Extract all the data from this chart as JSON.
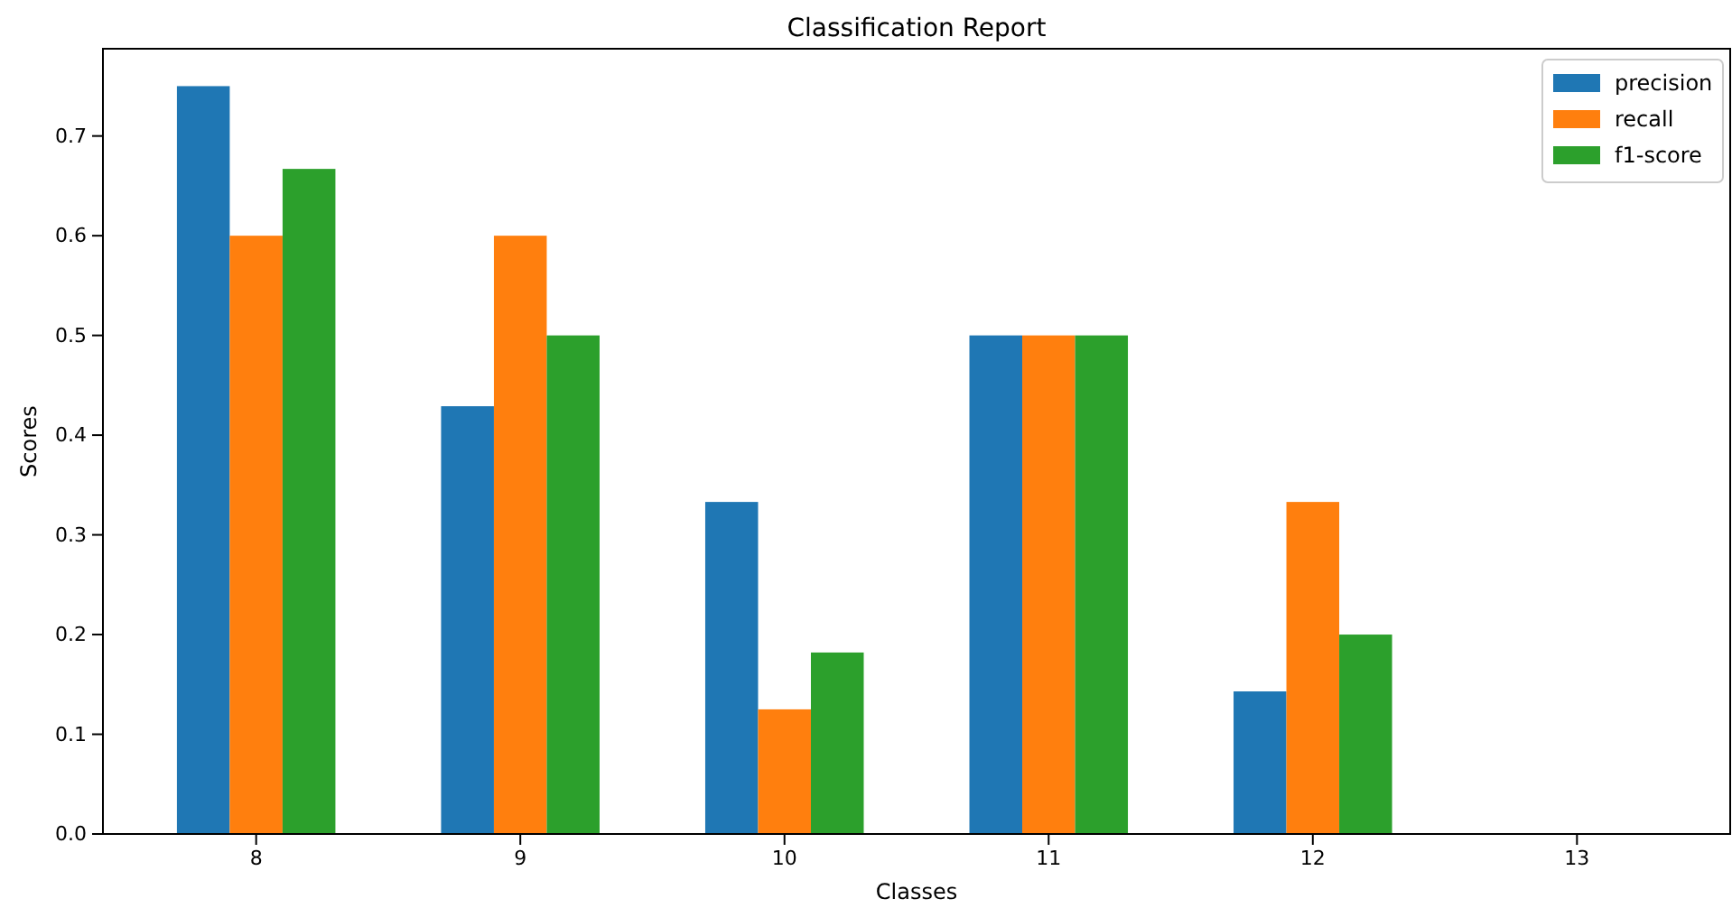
{
  "chart_data": {
    "type": "bar",
    "title": "Classification Report",
    "xlabel": "Classes",
    "ylabel": "Scores",
    "categories": [
      "8",
      "9",
      "10",
      "11",
      "12",
      "13"
    ],
    "series": [
      {
        "name": "precision",
        "color": "#1f77b4",
        "values": [
          0.75,
          0.429,
          0.333,
          0.5,
          0.143,
          0
        ]
      },
      {
        "name": "recall",
        "color": "#ff7f0e",
        "values": [
          0.6,
          0.6,
          0.125,
          0.5,
          0.333,
          0
        ]
      },
      {
        "name": "f1-score",
        "color": "#2ca02c",
        "values": [
          0.667,
          0.5,
          0.182,
          0.5,
          0.2,
          0
        ]
      }
    ],
    "ylim": [
      0,
      0.7875
    ],
    "yticks": [
      {
        "value": 0,
        "label": "0.0"
      },
      {
        "value": 0.1,
        "label": "0.1"
      },
      {
        "value": 0.2,
        "label": "0.2"
      },
      {
        "value": 0.3,
        "label": "0.3"
      },
      {
        "value": 0.4,
        "label": "0.4"
      },
      {
        "value": 0.5,
        "label": "0.5"
      },
      {
        "value": 0.6,
        "label": "0.6"
      },
      {
        "value": 0.7,
        "label": "0.7"
      }
    ],
    "grid": false,
    "legend": "top right"
  }
}
